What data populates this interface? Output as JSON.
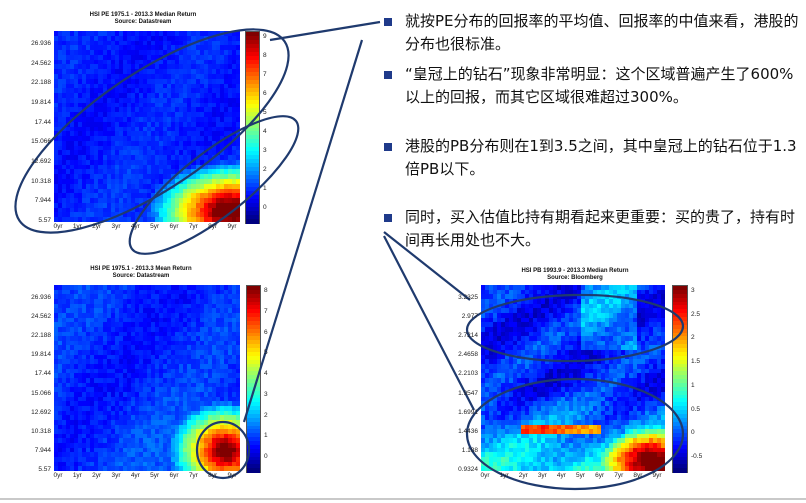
{
  "bullets": [
    "就按PE分布的回报率的平均值、回报率的中值来看，港股的分布也很标准。",
    "“皇冠上的钻石”现象非常明显：这个区域普遍产生了600%以上的回报，而其它区域很难超过300%。",
    "港股的PB分布则在1到3.5之间，其中皇冠上的钻石位于1.3倍PB以下。",
    "同时，买入估值比持有期看起来更重要：买的贵了，持有时间再长用处也不大。"
  ],
  "colors": {
    "bullet": "#1f3a8a",
    "ellipse": "#1f3a6e",
    "heat_base": "#1a3ea8"
  },
  "chart_data": [
    {
      "type": "heatmap",
      "title": "HSI PE 1975.1 - 2013.3 Median Return",
      "subtitle": "Source: Datastream",
      "x_ticks": [
        "0yr",
        "1yr",
        "2yr",
        "3yr",
        "4yr",
        "5yr",
        "6yr",
        "7yr",
        "8yr",
        "9yr"
      ],
      "y_ticks": [
        "26.936",
        "24.562",
        "22.188",
        "19.814",
        "17.44",
        "15.066",
        "12.692",
        "10.318",
        "7.944",
        "5.57"
      ],
      "colorbar_ticks": [
        "9",
        "8",
        "7",
        "6",
        "5",
        "4",
        "3",
        "2",
        "1",
        "0"
      ],
      "colorbar_range": [
        0,
        9
      ]
    },
    {
      "type": "heatmap",
      "title": "HSI PE 1975.1 - 2013.3 Mean Return",
      "subtitle": "Source: Datastream",
      "x_ticks": [
        "0yr",
        "1yr",
        "2yr",
        "3yr",
        "4yr",
        "5yr",
        "6yr",
        "7yr",
        "8yr",
        "9yr"
      ],
      "y_ticks": [
        "26.936",
        "24.562",
        "22.188",
        "19.814",
        "17.44",
        "15.066",
        "12.692",
        "10.318",
        "7.944",
        "5.57"
      ],
      "colorbar_ticks": [
        "8",
        "7",
        "6",
        "5",
        "4",
        "3",
        "2",
        "1",
        "0"
      ],
      "colorbar_range": [
        0,
        8
      ]
    },
    {
      "type": "heatmap",
      "title": "HSI PB 1993.9 - 2013.3 Median Return",
      "subtitle": "Source: Bloomberg",
      "x_ticks": [
        "0yr",
        "1yr",
        "2yr",
        "3yr",
        "4yr",
        "5yr",
        "6yr",
        "7yr",
        "8yr",
        "9yr"
      ],
      "y_ticks": [
        "3.2325",
        "2.977",
        "2.7214",
        "2.4658",
        "2.2103",
        "1.9547",
        "1.6991",
        "1.4436",
        "1.188",
        "0.9324"
      ],
      "colorbar_ticks": [
        "3",
        "2.5",
        "2",
        "1.5",
        "1",
        "0.5",
        "0",
        "-0.5"
      ],
      "colorbar_range": [
        -0.5,
        3
      ]
    }
  ]
}
